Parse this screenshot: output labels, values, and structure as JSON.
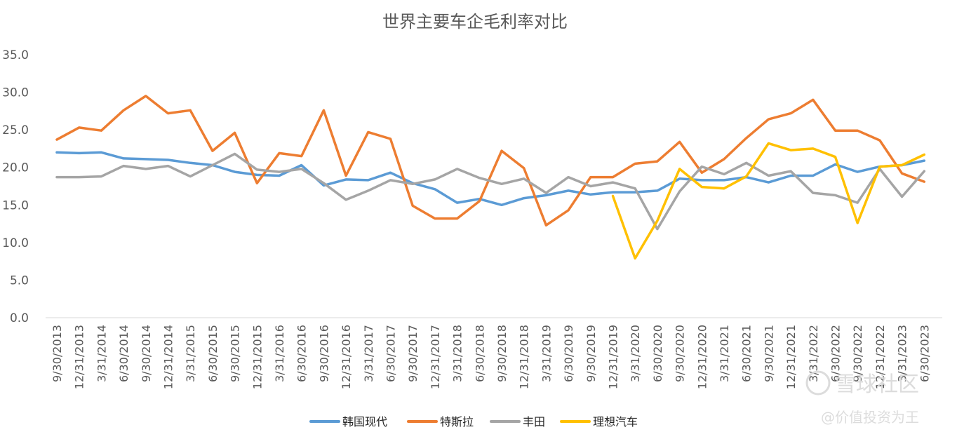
{
  "chart_data": {
    "type": "line",
    "title": "世界主要车企毛利率对比",
    "ylim": [
      0,
      35
    ],
    "yticks": [
      "0.0",
      "5.0",
      "10.0",
      "15.0",
      "20.0",
      "25.0",
      "30.0",
      "35.0"
    ],
    "grid": false,
    "legend_position": "bottom",
    "categories": [
      "9/30/2013",
      "12/31/2013",
      "3/31/2014",
      "6/30/2014",
      "9/30/2014",
      "12/31/2014",
      "3/31/2015",
      "6/30/2015",
      "9/30/2015",
      "12/31/2015",
      "3/31/2016",
      "6/30/2016",
      "9/30/2016",
      "12/31/2016",
      "3/31/2017",
      "6/30/2017",
      "9/30/2017",
      "12/31/2017",
      "3/31/2018",
      "6/30/2018",
      "9/30/2018",
      "12/31/2018",
      "3/31/2019",
      "6/30/2019",
      "9/30/2019",
      "12/31/2019",
      "3/31/2020",
      "6/30/2020",
      "9/30/2020",
      "12/31/2020",
      "3/31/2021",
      "6/30/2021",
      "9/30/2021",
      "12/31/2021",
      "3/31/2022",
      "6/30/2022",
      "9/30/2022",
      "12/31/2022",
      "3/31/2023",
      "6/30/2023"
    ],
    "series": [
      {
        "name": "韩国现代",
        "color": "#5b9bd5",
        "values": [
          22.0,
          21.9,
          22.0,
          21.2,
          21.1,
          21.0,
          20.6,
          20.3,
          19.4,
          19.0,
          18.9,
          20.3,
          17.6,
          18.4,
          18.3,
          19.3,
          17.9,
          17.1,
          15.3,
          15.8,
          15.0,
          15.9,
          16.3,
          16.9,
          16.4,
          16.7,
          16.7,
          16.9,
          18.5,
          18.3,
          18.3,
          18.7,
          18.0,
          18.9,
          18.9,
          20.4,
          19.4,
          20.1,
          20.3,
          20.9
        ]
      },
      {
        "name": "特斯拉",
        "color": "#ed7d31",
        "values": [
          23.7,
          25.3,
          24.9,
          27.6,
          29.5,
          27.2,
          27.6,
          22.2,
          24.6,
          17.9,
          21.9,
          21.5,
          27.6,
          18.9,
          24.7,
          23.8,
          14.9,
          13.2,
          13.2,
          15.5,
          22.2,
          19.9,
          12.3,
          14.3,
          18.7,
          18.7,
          20.5,
          20.8,
          23.4,
          19.3,
          21.1,
          23.9,
          26.4,
          27.2,
          29.0,
          24.9,
          24.9,
          23.6,
          19.2,
          18.1
        ]
      },
      {
        "name": "丰田",
        "color": "#a5a5a5",
        "values": [
          18.7,
          18.7,
          18.8,
          20.2,
          19.8,
          20.2,
          18.8,
          20.3,
          21.8,
          19.7,
          19.4,
          19.8,
          17.9,
          15.7,
          16.9,
          18.3,
          17.8,
          18.4,
          19.8,
          18.6,
          17.8,
          18.5,
          16.6,
          18.7,
          17.5,
          18.0,
          17.2,
          11.8,
          16.8,
          20.1,
          19.1,
          20.6,
          18.9,
          19.5,
          16.6,
          16.3,
          15.3,
          19.8,
          16.1,
          19.5
        ]
      },
      {
        "name": "理想汽车",
        "color": "#ffc000",
        "values": [
          null,
          null,
          null,
          null,
          null,
          null,
          null,
          null,
          null,
          null,
          null,
          null,
          null,
          null,
          null,
          null,
          null,
          null,
          null,
          null,
          null,
          null,
          null,
          null,
          null,
          16.2,
          7.9,
          12.9,
          19.8,
          17.4,
          17.2,
          18.8,
          23.2,
          22.3,
          22.5,
          21.4,
          12.6,
          20.1,
          20.3,
          21.7
        ]
      }
    ]
  },
  "watermark": {
    "logo_text": "雪球社区",
    "handle": "@价值投资为王"
  }
}
